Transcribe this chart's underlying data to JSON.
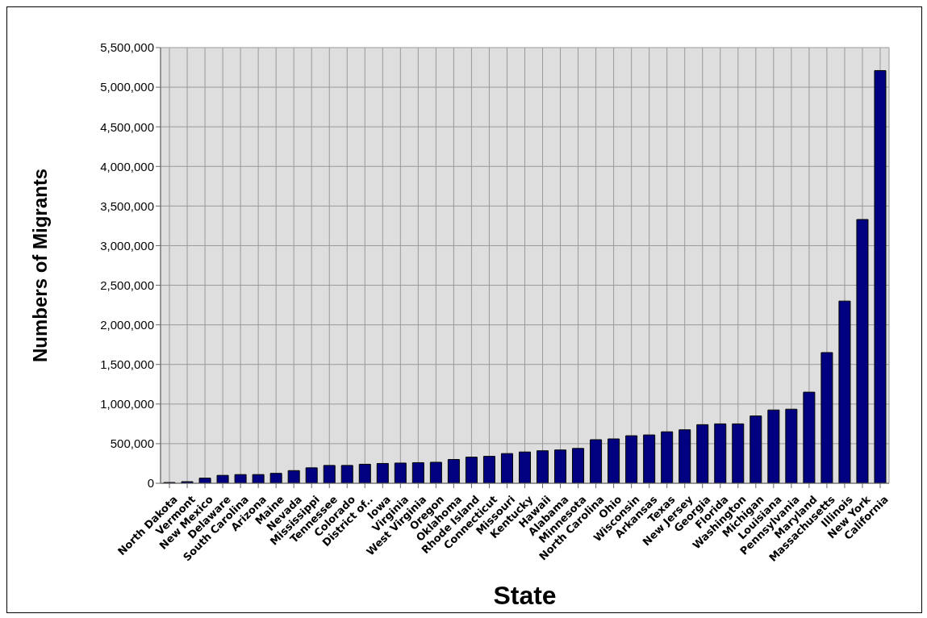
{
  "chart_data": {
    "type": "bar",
    "xlabel": "State",
    "ylabel": "Numbers of Migrants",
    "categories": [
      "North Dakota",
      "Vermont",
      "New Mexico",
      "Delaware",
      "South Carolina",
      "Arizona",
      "Maine",
      "Nevada",
      "Mississippi",
      "Tennessee",
      "Colorado",
      "District of..",
      "Iowa",
      "Virginia",
      "West Virginia",
      "Oregon",
      "Oklahoma",
      "Rhode Island",
      "Connecticut",
      "Missouri",
      "Kentucky",
      "Hawaii",
      "Alabama",
      "Minnesota",
      "North Carolina",
      "Ohio",
      "Wisconsin",
      "Arkansas",
      "Texas",
      "New Jersey",
      "Georgia",
      "Florida",
      "Washington",
      "Michigan",
      "Louisiana",
      "Pennsylvania",
      "Maryland",
      "Massachusetts",
      "Illinois",
      "New York",
      "California"
    ],
    "values": [
      10000,
      20000,
      65000,
      100000,
      110000,
      110000,
      125000,
      160000,
      195000,
      225000,
      225000,
      240000,
      250000,
      255000,
      260000,
      265000,
      300000,
      330000,
      340000,
      375000,
      395000,
      410000,
      420000,
      440000,
      550000,
      560000,
      600000,
      610000,
      650000,
      675000,
      740000,
      750000,
      750000,
      850000,
      925000,
      935000,
      1150000,
      1650000,
      2300000,
      3330000,
      5210000
    ],
    "color": "#000080",
    "ylim": [
      0,
      5500000
    ],
    "yticks": [
      0,
      {
        "value": 500000,
        "label": "500,000"
      },
      {
        "value": 1000000,
        "label": "1,000,000"
      },
      {
        "value": 1500000,
        "label": "1,500,000"
      },
      {
        "value": 2000000,
        "label": "2,000,000"
      },
      {
        "value": 2500000,
        "label": "2,500,000"
      },
      {
        "value": 3000000,
        "label": "3,000,000"
      },
      {
        "value": 3500000,
        "label": "3,500,000"
      },
      {
        "value": 4000000,
        "label": "4,000,000"
      },
      {
        "value": 4500000,
        "label": "4,500,000"
      },
      {
        "value": 5000000,
        "label": "5,000,000"
      },
      {
        "value": 5500000,
        "label": "5,500,000"
      }
    ],
    "grid": true
  }
}
